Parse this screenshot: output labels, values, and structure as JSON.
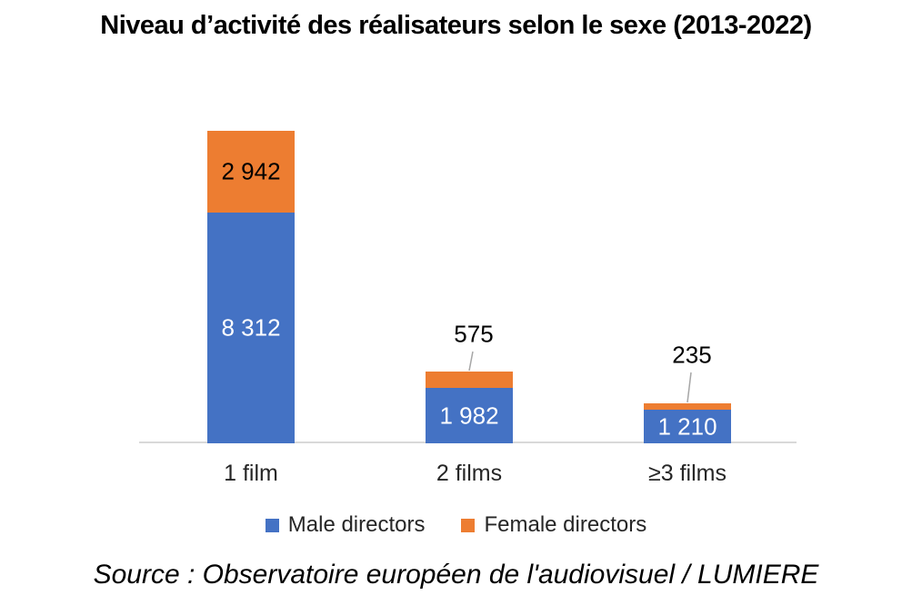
{
  "page": {
    "source": "Source : Observatoire européen de l'audiovisuel / LUMIERE"
  },
  "chart_data": {
    "type": "bar",
    "stacked": true,
    "title": "Niveau d’activité des réalisateurs selon le sexe (2013-2022)",
    "categories": [
      "1 film",
      "2 films",
      "≥3 films"
    ],
    "series": [
      {
        "name": "Male directors",
        "color": "#4472C4",
        "values": [
          8312,
          1982,
          1210
        ],
        "data_labels": [
          "8 312",
          "1 982",
          "1 210"
        ],
        "data_label_color": "#FFFFFF",
        "data_label_placement": "inside"
      },
      {
        "name": "Female directors",
        "color": "#ED7D31",
        "values": [
          2942,
          575,
          235
        ],
        "data_labels": [
          "2 942",
          "575",
          "235"
        ],
        "data_label_color": "#000000",
        "data_label_placement": [
          "inside",
          "outside-callout",
          "outside-callout"
        ]
      }
    ],
    "ylim": [
      0,
      11254
    ],
    "grid": false,
    "y_axis_visible": false,
    "legend_position": "bottom",
    "axis_line_color": "#D9D9D9",
    "callout_line_color": "#A6A6A6"
  }
}
